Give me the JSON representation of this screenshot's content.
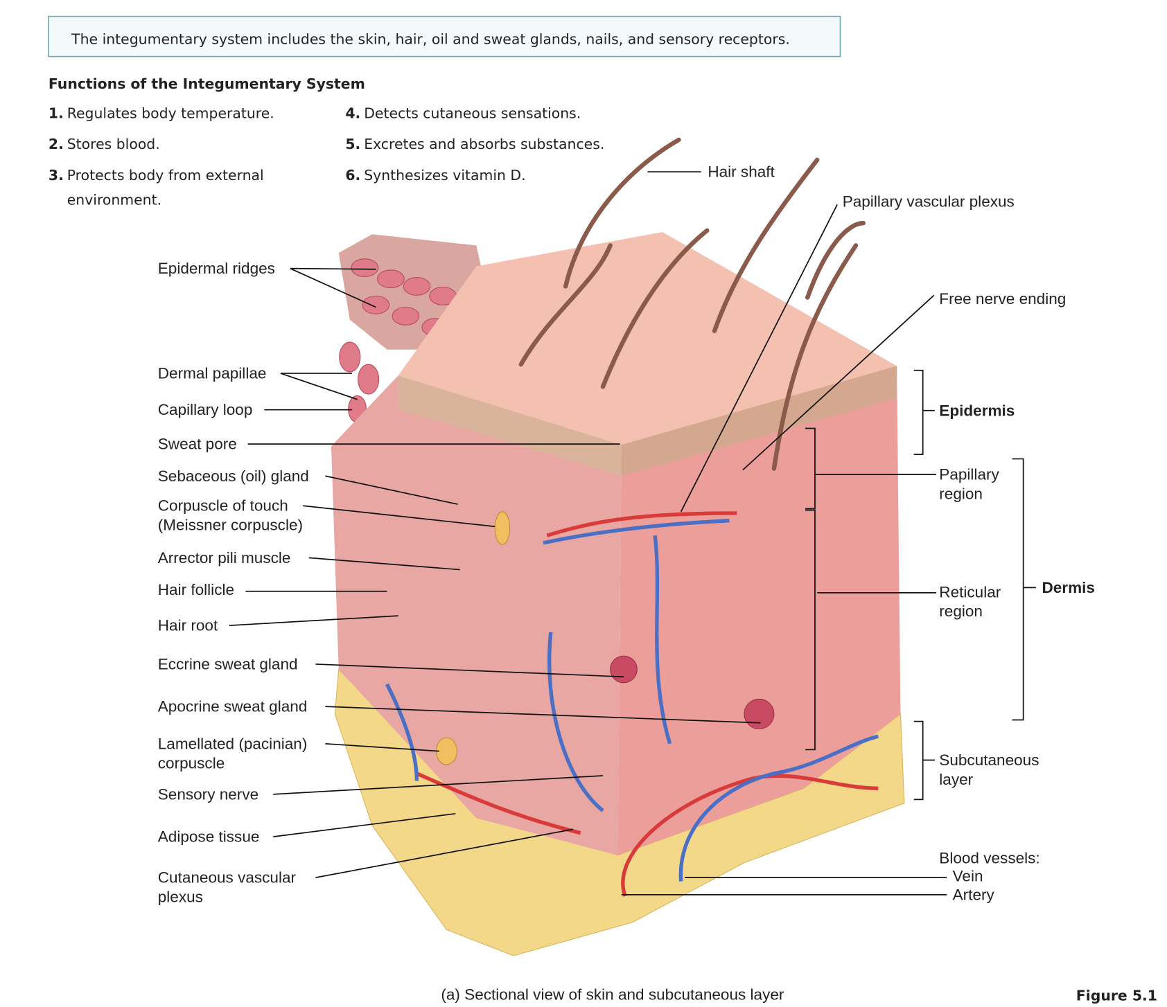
{
  "header": {
    "text": "The integumentary system includes the skin, hair, oil and sweat glands, nails, and sensory receptors."
  },
  "functions": {
    "title": "Functions of the Integumentary System",
    "items": [
      {
        "number": "1.",
        "lines": [
          "Regulates body temperature."
        ]
      },
      {
        "number": "2.",
        "lines": [
          "Stores blood."
        ]
      },
      {
        "number": "3.",
        "lines": [
          "Protects body from external",
          "environment."
        ]
      },
      {
        "number": "4.",
        "lines": [
          "Detects cutaneous sensations."
        ]
      },
      {
        "number": "5.",
        "lines": [
          "Excretes and absorbs substances."
        ]
      },
      {
        "number": "6.",
        "lines": [
          "Synthesizes vitamin D."
        ]
      }
    ]
  },
  "left_labels": [
    {
      "lines": [
        "Epidermal ridges"
      ]
    },
    {
      "lines": [
        "Dermal papillae"
      ]
    },
    {
      "lines": [
        "Capillary loop"
      ]
    },
    {
      "lines": [
        "Sweat pore"
      ]
    },
    {
      "lines": [
        "Sebaceous (oil) gland"
      ]
    },
    {
      "lines": [
        "Corpuscle of touch",
        "(Meissner corpuscle)"
      ]
    },
    {
      "lines": [
        "Arrector pili muscle"
      ]
    },
    {
      "lines": [
        "Hair follicle"
      ]
    },
    {
      "lines": [
        "Hair root"
      ]
    },
    {
      "lines": [
        "Eccrine sweat gland"
      ]
    },
    {
      "lines": [
        "Apocrine sweat gland"
      ]
    },
    {
      "lines": [
        "Lamellated (pacinian)",
        "corpuscle"
      ]
    },
    {
      "lines": [
        "Sensory nerve"
      ]
    },
    {
      "lines": [
        "Adipose tissue"
      ]
    },
    {
      "lines": [
        "Cutaneous vascular",
        "plexus"
      ]
    }
  ],
  "right_labels": [
    {
      "lines": [
        "Hair shaft"
      ]
    },
    {
      "lines": [
        "Papillary vascular plexus"
      ]
    },
    {
      "lines": [
        "Free nerve ending"
      ]
    },
    {
      "lines": [
        "Epidermis"
      ]
    },
    {
      "lines": [
        "Papillary",
        "region"
      ]
    },
    {
      "lines": [
        "Reticular",
        "region"
      ]
    },
    {
      "lines": [
        "Dermis"
      ]
    },
    {
      "lines": [
        "Subcutaneous",
        "layer"
      ]
    },
    {
      "lines": [
        "Blood vessels:"
      ]
    },
    {
      "lines": [
        "Vein"
      ]
    },
    {
      "lines": [
        "Artery"
      ]
    }
  ],
  "caption": "(a) Sectional view of skin and subcutaneous layer",
  "figure": "Figure 5.1"
}
